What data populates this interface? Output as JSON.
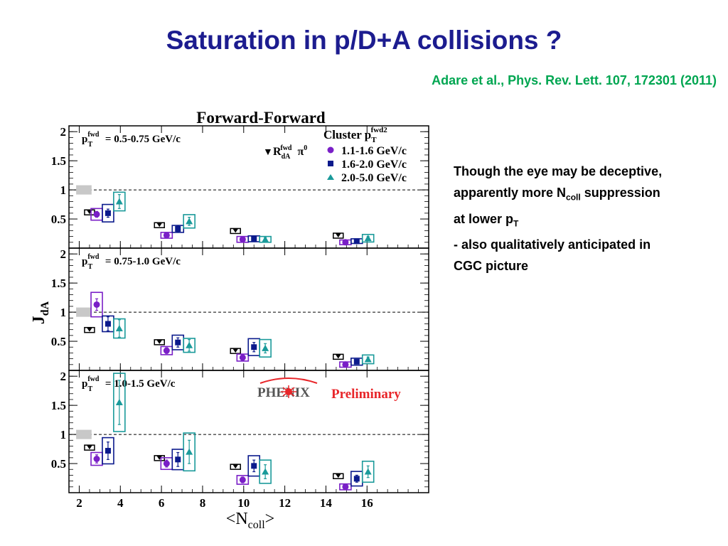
{
  "slide": {
    "title": "Saturation in p/D+A collisions ?",
    "reference": "Adare et al., Phys. Rev. Lett. 107, 172301 (2011)",
    "notes": {
      "line1": "Though the eye may be deceptive,",
      "line2_pre": "apparently more N",
      "line2_sub": "coll",
      "line2_post": " suppression",
      "line3_pre": "at lower p",
      "line3_sub": "T",
      "line4": "- also qualitatively anticipated in",
      "line5": "CGC picture"
    }
  },
  "colors": {
    "rda": "#000000",
    "series1": "#7a1fc7",
    "series2": "#0b1a8c",
    "series3": "#1a9a9a",
    "ref_band": "#c8c8c8",
    "phenix_red": "#e8262a"
  },
  "chart_data": {
    "type": "scatter",
    "title": "Forward-Forward",
    "ylabel": "J",
    "ylabel_sub": "dA",
    "xlabel": "<N",
    "xlabel_sub": "coll",
    "xlabel_end": ">",
    "xlim": [
      1.5,
      19
    ],
    "ylim": [
      0,
      2.1
    ],
    "xticks": [
      2,
      4,
      6,
      8,
      10,
      12,
      14,
      16
    ],
    "yticks": [
      0.5,
      1,
      1.5,
      2
    ],
    "ytick_labels": [
      "0.5",
      "1",
      "1.5",
      "2"
    ],
    "reference_line": 1.0,
    "legend": {
      "header": "Cluster p",
      "header_sub": "T",
      "header_sup": "fwd2",
      "rda_label": "R",
      "rda_sub": "dA",
      "rda_sup": "fwd",
      "rda_suffix": "π",
      "rda_suffix_sup": "0",
      "series": [
        "1.1-1.6 GeV/c",
        "1.6-2.0 GeV/c",
        "2.0-5.0 GeV/c"
      ],
      "placement": "top-right"
    },
    "watermark": {
      "phenix": "PH",
      "phenix_end": "ENIX",
      "preliminary": "Preliminary"
    },
    "panels": [
      {
        "label_pre": "p",
        "label_sup": "fwd",
        "label_sub": "T",
        "label_text": " = 0.5-0.75 GeV/c",
        "x": [
          2.5,
          5.9,
          9.6,
          14.6
        ],
        "rda": [
          0.62,
          0.4,
          0.3,
          0.22
        ],
        "series": [
          [
            0.58,
            0.22,
            0.15,
            0.1
          ],
          [
            0.6,
            0.33,
            0.16,
            0.12
          ],
          [
            0.8,
            0.46,
            0.15,
            0.17
          ]
        ],
        "errors": [
          [
            0.05,
            0.04,
            0.03,
            0.02
          ],
          [
            0.07,
            0.05,
            0.03,
            0.02
          ],
          [
            0.12,
            0.07,
            0.03,
            0.03
          ]
        ],
        "sys": [
          [
            0.2,
            0.1,
            0.1,
            0.08
          ],
          [
            0.3,
            0.12,
            0.1,
            0.08
          ],
          [
            0.32,
            0.23,
            0.1,
            0.13
          ]
        ]
      },
      {
        "label_pre": "p",
        "label_sup": "fwd",
        "label_sub": "T",
        "label_text": " = 0.75-1.0 GeV/c",
        "x": [
          2.5,
          5.9,
          9.6,
          14.6
        ],
        "rda": [
          0.7,
          0.49,
          0.34,
          0.24
        ],
        "series": [
          [
            1.13,
            0.34,
            0.22,
            0.1
          ],
          [
            0.8,
            0.48,
            0.4,
            0.15
          ],
          [
            0.72,
            0.43,
            0.38,
            0.19
          ]
        ],
        "errors": [
          [
            0.1,
            0.05,
            0.05,
            0.03
          ],
          [
            0.12,
            0.08,
            0.08,
            0.03
          ],
          [
            0.15,
            0.1,
            0.08,
            0.04
          ]
        ],
        "sys": [
          [
            0.42,
            0.14,
            0.12,
            0.09
          ],
          [
            0.27,
            0.25,
            0.29,
            0.12
          ],
          [
            0.33,
            0.24,
            0.3,
            0.15
          ]
        ]
      },
      {
        "label_pre": "p",
        "label_sup": "fwd",
        "label_sub": "T",
        "label_text": " = 1.0-1.5 GeV/c",
        "x": [
          2.5,
          5.9,
          9.6,
          14.6
        ],
        "rda": [
          0.78,
          0.6,
          0.45,
          0.29
        ],
        "series": [
          [
            0.58,
            0.5,
            0.22,
            0.1
          ],
          [
            0.72,
            0.57,
            0.46,
            0.24
          ],
          [
            1.55,
            0.7,
            0.36,
            0.36
          ]
        ],
        "errors": [
          [
            0.07,
            0.06,
            0.05,
            0.03
          ],
          [
            0.15,
            0.12,
            0.1,
            0.06
          ],
          [
            0.38,
            0.2,
            0.12,
            0.1
          ]
        ],
        "sys": [
          [
            0.22,
            0.2,
            0.15,
            0.1
          ],
          [
            0.45,
            0.35,
            0.35,
            0.25
          ],
          [
            1.0,
            0.65,
            0.4,
            0.36
          ]
        ]
      }
    ]
  }
}
